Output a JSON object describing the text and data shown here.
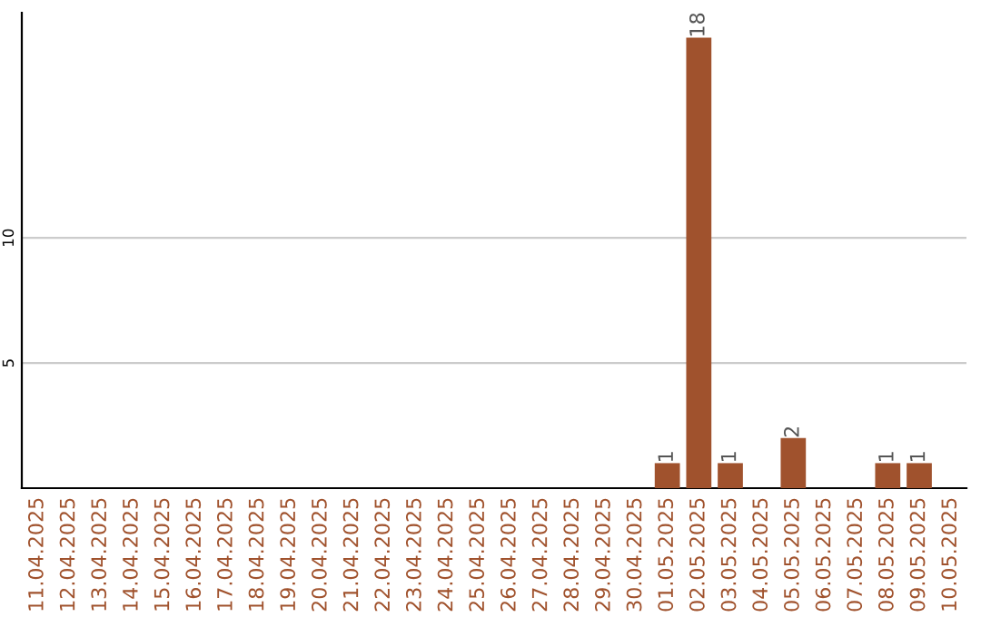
{
  "chart_data": {
    "type": "bar",
    "categories": [
      "11.04.2025",
      "12.04.2025",
      "13.04.2025",
      "14.04.2025",
      "15.04.2025",
      "16.04.2025",
      "17.04.2025",
      "18.04.2025",
      "19.04.2025",
      "20.04.2025",
      "21.04.2025",
      "22.04.2025",
      "23.04.2025",
      "24.04.2025",
      "25.04.2025",
      "26.04.2025",
      "27.04.2025",
      "28.04.2025",
      "29.04.2025",
      "30.04.2025",
      "01.05.2025",
      "02.05.2025",
      "03.05.2025",
      "04.05.2025",
      "05.05.2025",
      "06.05.2025",
      "07.05.2025",
      "08.05.2025",
      "09.05.2025",
      "10.05.2025"
    ],
    "values": [
      0,
      0,
      0,
      0,
      0,
      0,
      0,
      0,
      0,
      0,
      0,
      0,
      0,
      0,
      0,
      0,
      0,
      0,
      0,
      0,
      1,
      18,
      1,
      0,
      2,
      0,
      0,
      1,
      1,
      0
    ],
    "value_labels": [
      null,
      null,
      null,
      null,
      null,
      null,
      null,
      null,
      null,
      null,
      null,
      null,
      null,
      null,
      null,
      null,
      null,
      null,
      null,
      null,
      "1",
      "18",
      "1",
      null,
      "2",
      null,
      null,
      "1",
      "1",
      null
    ],
    "color": "#a0522d",
    "ylim": [
      0,
      19
    ],
    "yticks": [
      5,
      10
    ],
    "grid": "y"
  }
}
